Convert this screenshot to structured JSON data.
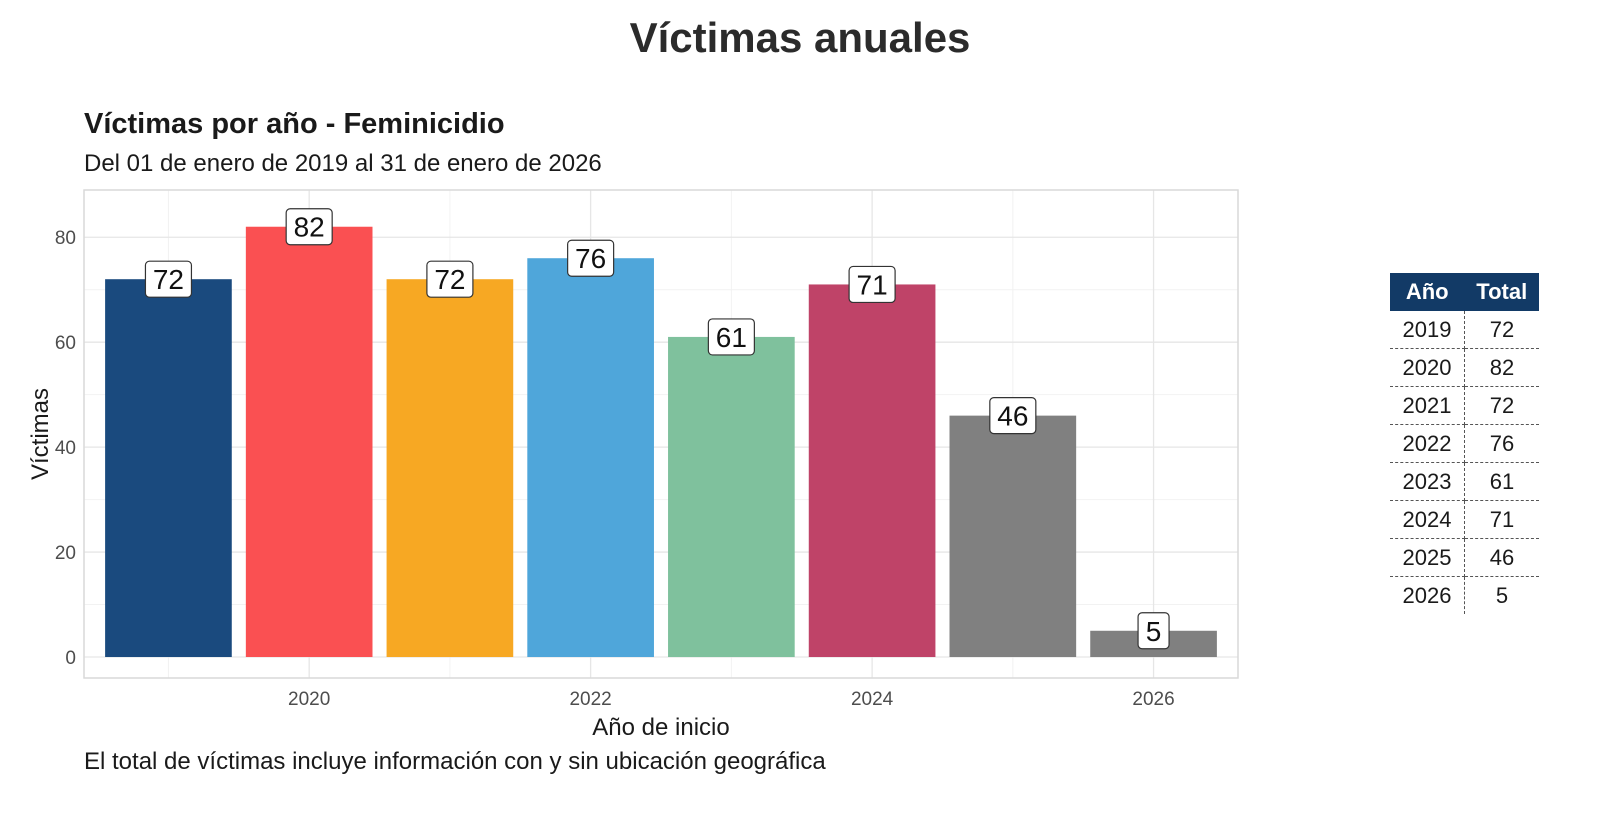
{
  "page": {
    "title": "Víctimas anuales"
  },
  "chart_data": {
    "type": "bar",
    "title": "Víctimas por año - Feminicidio",
    "subtitle": "Del 01 de enero de 2019 al 31 de enero de 2026",
    "xlabel": "Año de inicio",
    "ylabel": "Víctimas",
    "caption": "El total de víctimas incluye información con y sin ubicación geográfica",
    "categories": [
      "2019",
      "2020",
      "2021",
      "2022",
      "2023",
      "2024",
      "2025",
      "2026"
    ],
    "values": [
      72,
      82,
      72,
      76,
      61,
      71,
      46,
      5
    ],
    "colors": [
      "#1a4a7e",
      "#fa5052",
      "#f7a823",
      "#4fa6da",
      "#7fc19d",
      "#bf4368",
      "#808080",
      "#808080"
    ],
    "x_ticks": [
      "2020",
      "2022",
      "2024",
      "2026"
    ],
    "y_ticks": [
      0,
      20,
      40,
      60,
      80
    ],
    "ylim": [
      -4,
      89
    ],
    "grid": true,
    "legend": "none",
    "data_labels": true
  },
  "table": {
    "headers": [
      "Año",
      "Total"
    ],
    "rows": [
      [
        "2019",
        "72"
      ],
      [
        "2020",
        "82"
      ],
      [
        "2021",
        "72"
      ],
      [
        "2022",
        "76"
      ],
      [
        "2023",
        "61"
      ],
      [
        "2024",
        "71"
      ],
      [
        "2025",
        "46"
      ],
      [
        "2026",
        "5"
      ]
    ],
    "header_color": "#123a66"
  }
}
